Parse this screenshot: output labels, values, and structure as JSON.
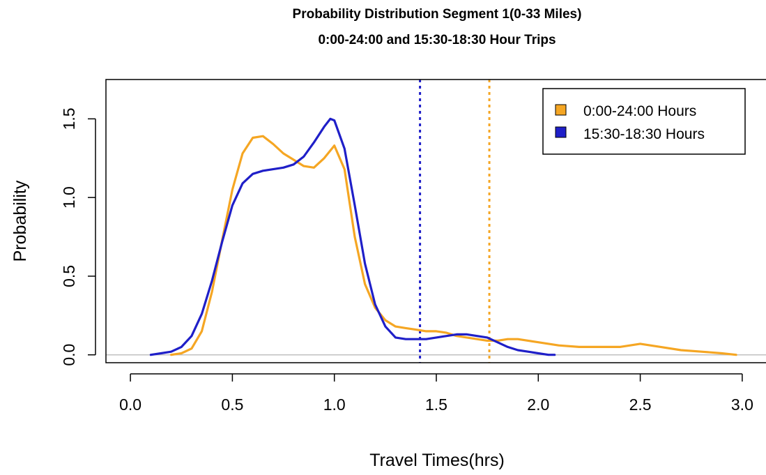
{
  "chart_data": {
    "type": "line",
    "title": "Probability Distribution Segment 1(0-33 Miles)",
    "subtitle": "0:00-24:00 and 15:30-18:30 Hour Trips",
    "xlabel": "Travel Times(hrs)",
    "ylabel": "Probability",
    "xlim": [
      -0.12,
      3.12
    ],
    "ylim": [
      -0.05,
      1.75
    ],
    "x_ticks": [
      0.0,
      0.5,
      1.0,
      1.5,
      2.0,
      2.5,
      3.0
    ],
    "x_tick_labels": [
      "0.0",
      "0.5",
      "1.0",
      "1.5",
      "2.0",
      "2.5",
      "3.0"
    ],
    "y_ticks": [
      0.0,
      0.5,
      1.0,
      1.5
    ],
    "y_tick_labels": [
      "0.0",
      "0.5",
      "1.0",
      "1.5"
    ],
    "grid": false,
    "baseline": 0.0,
    "legend_position": "top-right",
    "series": [
      {
        "name": "0:00-24:00 Hours",
        "color": "#f5a623",
        "x": [
          0.2,
          0.25,
          0.3,
          0.35,
          0.4,
          0.45,
          0.5,
          0.55,
          0.6,
          0.65,
          0.7,
          0.75,
          0.8,
          0.85,
          0.9,
          0.95,
          1.0,
          1.05,
          1.1,
          1.15,
          1.2,
          1.25,
          1.3,
          1.35,
          1.4,
          1.45,
          1.5,
          1.55,
          1.6,
          1.65,
          1.7,
          1.75,
          1.8,
          1.85,
          1.9,
          1.95,
          2.0,
          2.1,
          2.2,
          2.3,
          2.4,
          2.45,
          2.5,
          2.55,
          2.6,
          2.7,
          2.8,
          2.9,
          2.97
        ],
        "y": [
          0.0,
          0.01,
          0.04,
          0.15,
          0.4,
          0.73,
          1.05,
          1.28,
          1.38,
          1.39,
          1.34,
          1.28,
          1.24,
          1.2,
          1.19,
          1.25,
          1.33,
          1.18,
          0.75,
          0.45,
          0.3,
          0.22,
          0.18,
          0.17,
          0.16,
          0.15,
          0.15,
          0.14,
          0.12,
          0.11,
          0.1,
          0.09,
          0.09,
          0.1,
          0.1,
          0.09,
          0.08,
          0.06,
          0.05,
          0.05,
          0.05,
          0.06,
          0.07,
          0.06,
          0.05,
          0.03,
          0.02,
          0.01,
          0.0
        ]
      },
      {
        "name": "15:30-18:30 Hours",
        "color": "#1f1fc8",
        "x": [
          0.1,
          0.15,
          0.2,
          0.25,
          0.3,
          0.35,
          0.4,
          0.45,
          0.5,
          0.55,
          0.6,
          0.65,
          0.7,
          0.75,
          0.8,
          0.85,
          0.9,
          0.95,
          0.98,
          1.0,
          1.05,
          1.1,
          1.15,
          1.2,
          1.25,
          1.3,
          1.35,
          1.4,
          1.45,
          1.5,
          1.55,
          1.6,
          1.65,
          1.7,
          1.75,
          1.8,
          1.85,
          1.9,
          1.95,
          2.0,
          2.05,
          2.08
        ],
        "y": [
          0.0,
          0.01,
          0.02,
          0.05,
          0.12,
          0.26,
          0.47,
          0.72,
          0.95,
          1.09,
          1.15,
          1.17,
          1.18,
          1.19,
          1.21,
          1.26,
          1.35,
          1.45,
          1.5,
          1.49,
          1.31,
          0.95,
          0.58,
          0.32,
          0.18,
          0.11,
          0.1,
          0.1,
          0.1,
          0.11,
          0.12,
          0.13,
          0.13,
          0.12,
          0.11,
          0.08,
          0.05,
          0.03,
          0.02,
          0.01,
          0.0,
          0.0
        ]
      }
    ],
    "reference_lines": [
      {
        "x": 1.42,
        "color": "#1f1fc8",
        "style": "dotted"
      },
      {
        "x": 1.76,
        "color": "#f5a623",
        "style": "dotted"
      }
    ]
  }
}
